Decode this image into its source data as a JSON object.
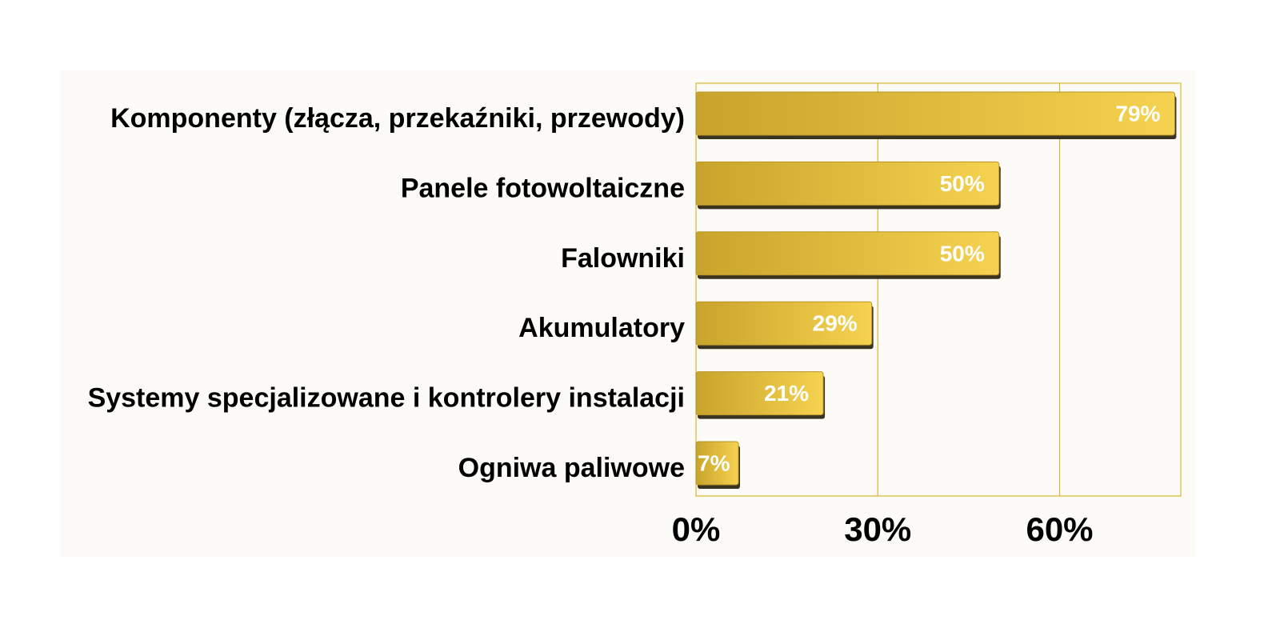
{
  "colors": {
    "bar_light": "#f5d24f",
    "bar_dark": "#c8a42c",
    "bar_shadow": "#3a3320",
    "grid": "#d9b730",
    "panel_bg": "#fcfbf8"
  },
  "chart_data": {
    "type": "bar",
    "orientation": "horizontal",
    "categories": [
      "Komponenty (złącza, przekaźniki, przewody)",
      "Panele fotowoltaiczne",
      "Falowniki",
      "Akumulatory",
      "Systemy specjalizowane i kontrolery instalacji",
      "Ogniwa paliwowe"
    ],
    "values": [
      79,
      50,
      50,
      29,
      21,
      7
    ],
    "data_labels": [
      "79%",
      "50%",
      "50%",
      "29%",
      "21%",
      "7%"
    ],
    "x_ticks": [
      0,
      30,
      60
    ],
    "x_tick_labels": [
      "0%",
      "30%",
      "60%"
    ],
    "xlim": [
      0,
      80
    ],
    "grid": true,
    "legend": "none"
  }
}
